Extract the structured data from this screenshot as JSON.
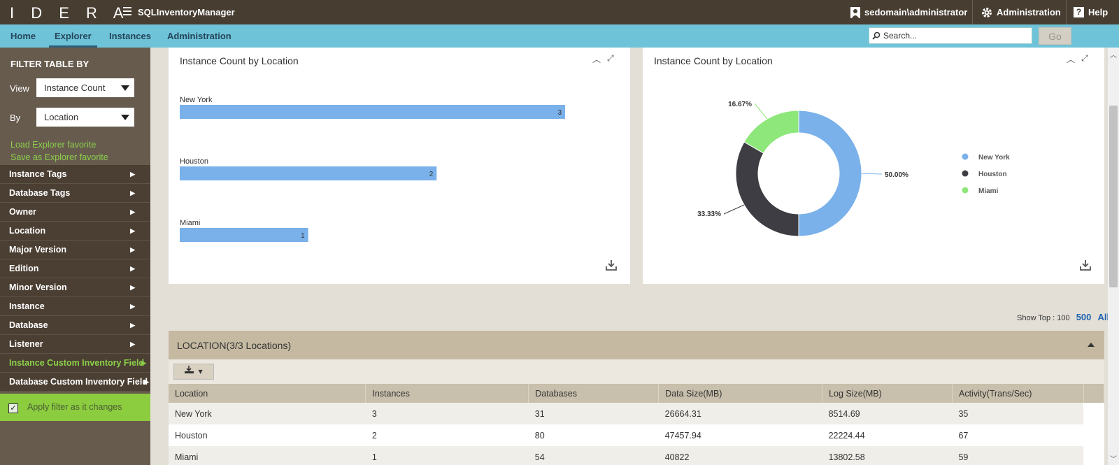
{
  "app": {
    "logo": "IDERA",
    "title": "SQLInventoryManager",
    "user": "sedomain\\administrator",
    "admin": "Administration",
    "help": "Help"
  },
  "nav": {
    "tabs": [
      "Home",
      "Explorer",
      "Instances",
      "Administration"
    ],
    "search_placeholder": "Search...",
    "go": "Go"
  },
  "sidebar": {
    "title": "FILTER TABLE BY",
    "view_label": "View",
    "view_value": "Instance Count",
    "by_label": "By",
    "by_value": "Location",
    "load_fav": "Load Explorer favorite",
    "save_fav": "Save as Explorer favorite",
    "items": [
      "Instance Tags",
      "Database Tags",
      "Owner",
      "Location",
      "Major Version",
      "Edition",
      "Minor Version",
      "Instance",
      "Database",
      "Listener",
      "Instance Custom Inventory Field",
      "Database Custom Inventory Field"
    ],
    "apply": "Apply filter as it changes"
  },
  "chart_data": [
    {
      "type": "bar",
      "title": "Instance Count by Location",
      "categories": [
        "New York",
        "Houston",
        "Miami"
      ],
      "values": [
        3,
        2,
        1
      ],
      "xlim": [
        0,
        3
      ],
      "color": "#7ab1ea"
    },
    {
      "type": "pie",
      "title": "Instance Count by Location",
      "labels": [
        "New York",
        "Houston",
        "Miami"
      ],
      "values": [
        50.0,
        33.33,
        16.67
      ],
      "display": [
        "50.00%",
        "33.33%",
        "16.67%"
      ],
      "colors": [
        "#7ab1ea",
        "#3d3d43",
        "#8de77a"
      ]
    }
  ],
  "showtop": {
    "label": "Show Top : 100",
    "opt500": "500",
    "optAll": "All"
  },
  "table": {
    "header": "LOCATION(3/3 Locations)",
    "columns": [
      "Location",
      "Instances",
      "Databases",
      "Data Size(MB)",
      "Log Size(MB)",
      "Activity(Trans/Sec)"
    ],
    "rows": [
      [
        "New York",
        "3",
        "31",
        "26664.31",
        "8514.69",
        "35"
      ],
      [
        "Houston",
        "2",
        "80",
        "47457.94",
        "22224.44",
        "67"
      ],
      [
        "Miami",
        "1",
        "54",
        "40822",
        "13802.58",
        "59"
      ]
    ]
  }
}
